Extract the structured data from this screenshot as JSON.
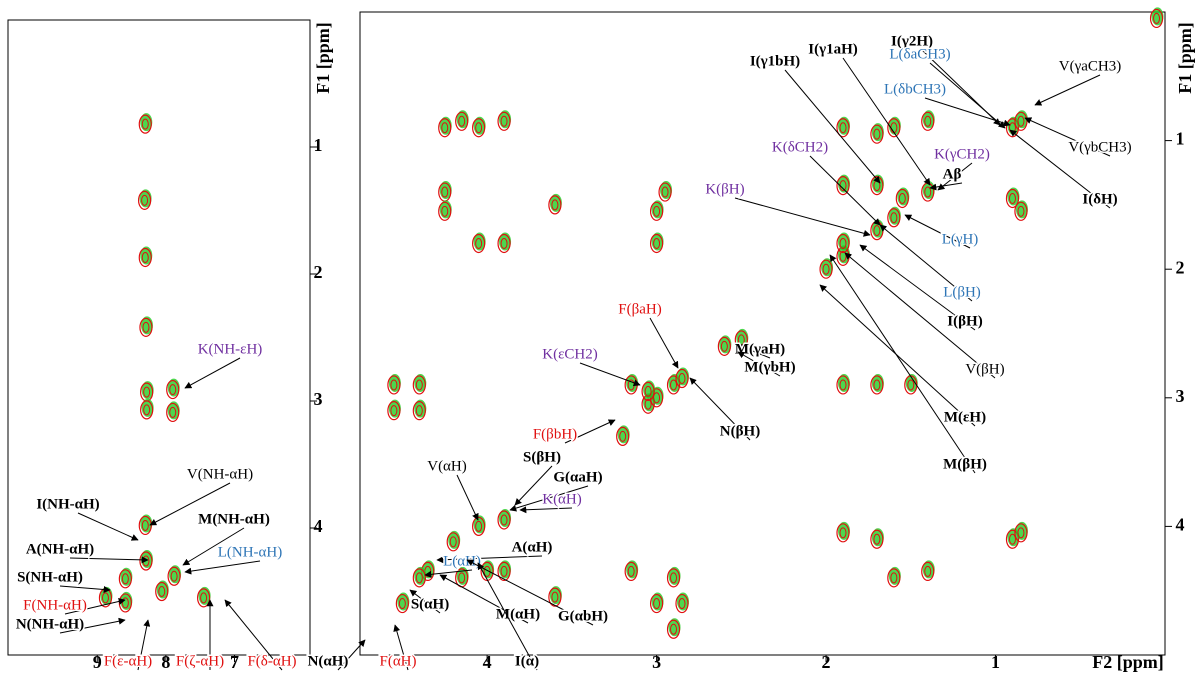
{
  "chart_data": [
    {
      "type": "scatter",
      "y_label": "F1 [ppm]",
      "xlim": [
        10.3,
        5.9
      ],
      "ylim": [
        0,
        5
      ],
      "xticks": [
        9,
        8,
        7
      ],
      "yticks": [
        1,
        2,
        3,
        4
      ],
      "color": "#e01010",
      "edge_color": "#22cc22",
      "x": [
        8.3,
        8.3,
        8.3,
        8.31,
        8.29,
        7.9,
        7.9,
        8.28,
        8.28,
        8.59,
        8.59,
        7.88,
        8.29,
        7.45,
        8.88,
        8.06
      ],
      "values": [
        0.82,
        1.87,
        3.98,
        1.42,
        2.42,
        2.91,
        3.09,
        2.93,
        3.07,
        4.4,
        4.59,
        4.38,
        4.26,
        4.55,
        4.55,
        4.5
      ],
      "annotations": [
        {
          "text": "K(NH-εH)",
          "color": "#7030a0"
        },
        {
          "text": "V(NH-αH)",
          "color": "#000000"
        },
        {
          "text": "I(NH-αH)",
          "color": "#000000"
        },
        {
          "text": "M(NH-αH)",
          "color": "#000000"
        },
        {
          "text": "A(NH-αH)",
          "color": "#000000"
        },
        {
          "text": "L(NH-αH)",
          "color": "#2e75b6"
        },
        {
          "text": "S(NH-αH)",
          "color": "#000000"
        },
        {
          "text": "F(NH-αH)",
          "color": "#e01010"
        },
        {
          "text": "N(NH-αH)",
          "color": "#000000"
        },
        {
          "text": "F(ε-αH)",
          "color": "#e01010"
        },
        {
          "text": "F(ζ-αH)",
          "color": "#e01010"
        },
        {
          "text": "F(δ-αH)",
          "color": "#e01010"
        }
      ]
    },
    {
      "type": "scatter",
      "x_label": "F2 [ppm]",
      "y_label": "F1 [ppm]",
      "xlim": [
        4.75,
        0
      ],
      "ylim": [
        0,
        5
      ],
      "xticks": [
        4,
        3,
        2,
        1
      ],
      "yticks": [
        1,
        2,
        3,
        4
      ],
      "color": "#e01010",
      "edge_color": "#22cc22",
      "x": [
        4.2,
        4.05,
        3.9,
        4.35,
        4.4,
        3.2,
        3.05,
        2.9,
        2.6,
        2.5,
        2.0,
        1.9,
        1.7,
        1.6,
        1.4,
        0.9,
        0.85,
        3.0,
        2.85,
        4.15,
        4.05,
        3.9,
        1.9,
        1.7,
        1.6,
        1.4,
        1.9,
        1.7,
        4.25,
        4.25,
        4.05,
        3.9,
        3.6,
        3.0,
        3.0,
        2.95,
        1.9,
        1.55,
        0.9,
        0.85,
        3.15,
        3.05,
        4.55,
        4.4,
        4.55,
        4.4,
        1.9,
        1.7,
        1.5,
        1.9,
        1.7,
        1.6,
        1.4,
        0.9,
        0.85,
        2.9,
        2.85,
        3.0,
        3.15,
        3.9,
        4.0,
        4.15,
        4.5,
        3.6,
        2.9,
        0.05,
        4.25
      ],
      "values": [
        4.12,
        4.0,
        3.95,
        4.35,
        4.4,
        3.3,
        3.05,
        2.9,
        2.6,
        2.55,
        2.0,
        1.9,
        1.7,
        1.6,
        1.4,
        0.9,
        0.85,
        3.0,
        2.85,
        0.85,
        0.9,
        0.85,
        0.9,
        0.95,
        0.9,
        0.85,
        1.35,
        1.35,
        1.4,
        1.55,
        1.8,
        1.8,
        1.5,
        1.55,
        1.8,
        1.4,
        1.8,
        1.45,
        1.45,
        1.55,
        2.9,
        2.95,
        2.9,
        2.9,
        3.1,
        3.1,
        2.9,
        2.9,
        2.9,
        4.05,
        4.1,
        4.4,
        4.35,
        4.1,
        4.05,
        4.4,
        4.6,
        4.6,
        4.35,
        4.35,
        4.35,
        4.4,
        4.6,
        4.55,
        4.8,
        0.05,
        0.9
      ],
      "annotations": [
        {
          "text": "I(γ2H)",
          "color": "#000000"
        },
        {
          "text": "I(γ1aH)",
          "color": "#000000"
        },
        {
          "text": "I(γ1bH)",
          "color": "#000000"
        },
        {
          "text": "L(δaCH3)",
          "color": "#2e75b6"
        },
        {
          "text": "V(γaCH3)",
          "color": "#000000"
        },
        {
          "text": "L(δbCH3)",
          "color": "#2e75b6"
        },
        {
          "text": "V(γbCH3)",
          "color": "#000000"
        },
        {
          "text": "K(δCH2)",
          "color": "#7030a0"
        },
        {
          "text": "K(γCH2)",
          "color": "#7030a0"
        },
        {
          "text": "Aβ",
          "color": "#000000"
        },
        {
          "text": "K(βH)",
          "color": "#7030a0"
        },
        {
          "text": "I(δH)",
          "color": "#000000"
        },
        {
          "text": "L(γH)",
          "color": "#2e75b6"
        },
        {
          "text": "L(βH)",
          "color": "#2e75b6"
        },
        {
          "text": "I(βH)",
          "color": "#000000"
        },
        {
          "text": "V(βH)",
          "color": "#000000"
        },
        {
          "text": "M(εH)",
          "color": "#000000"
        },
        {
          "text": "M(βH)",
          "color": "#000000"
        },
        {
          "text": "F(βaH)",
          "color": "#e01010"
        },
        {
          "text": "M(γaH)",
          "color": "#000000"
        },
        {
          "text": "M(γbH)",
          "color": "#000000"
        },
        {
          "text": "K(εCH2)",
          "color": "#7030a0"
        },
        {
          "text": "N(βH)",
          "color": "#000000"
        },
        {
          "text": "F(βbH)",
          "color": "#e01010"
        },
        {
          "text": "S(βH)",
          "color": "#000000"
        },
        {
          "text": "G(αaH)",
          "color": "#000000"
        },
        {
          "text": "V(αH)",
          "color": "#000000"
        },
        {
          "text": "K(αH)",
          "color": "#7030a0"
        },
        {
          "text": "A(αH)",
          "color": "#000000"
        },
        {
          "text": "L(αH)",
          "color": "#2e75b6"
        },
        {
          "text": "M(αH)",
          "color": "#000000"
        },
        {
          "text": "G(αbH)",
          "color": "#000000"
        },
        {
          "text": "S(αH)",
          "color": "#000000"
        },
        {
          "text": "I(α)",
          "color": "#000000"
        },
        {
          "text": "N(αH)",
          "color": "#000000"
        },
        {
          "text": "F(αH)",
          "color": "#e01010"
        }
      ]
    }
  ]
}
